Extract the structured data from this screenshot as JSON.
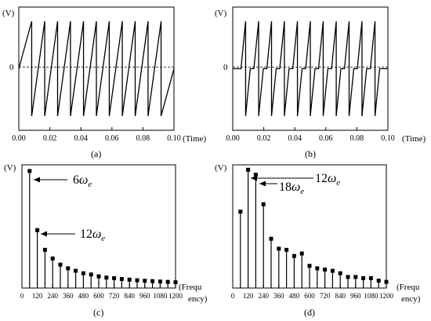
{
  "chart_data": [
    {
      "id": "a",
      "type": "line",
      "caption": "(a)",
      "ylabel": "(V)",
      "xlabel": "(Time)",
      "zero_label": "0",
      "xlim": [
        0,
        0.1
      ],
      "ylim": [
        -1.3,
        1.3
      ],
      "x_ticks": [
        "0.00",
        "0.02",
        "0.04",
        "0.06",
        "0.08",
        "0.10"
      ],
      "x_tick_values": [
        0.0,
        0.02,
        0.04,
        0.06,
        0.08,
        0.1
      ],
      "zero_line": "dashed",
      "series": [
        {
          "x": [
            0.0,
            0.0083,
            0.0083,
            0.0167,
            0.0167,
            0.025,
            0.025,
            0.0333,
            0.0333,
            0.0417,
            0.0417,
            0.05,
            0.05,
            0.0583,
            0.0583,
            0.0667,
            0.0667,
            0.075,
            0.075,
            0.0833,
            0.0833,
            0.0917,
            0.0917,
            0.1
          ],
          "y": [
            0.0,
            1.0,
            -1.0,
            1.0,
            -1.0,
            1.0,
            -1.0,
            1.0,
            -1.0,
            1.0,
            -1.0,
            1.0,
            -1.0,
            1.0,
            -1.0,
            1.0,
            -1.0,
            1.0,
            -1.0,
            1.0,
            -1.0,
            1.0,
            -1.0,
            0.0
          ]
        }
      ]
    },
    {
      "id": "b",
      "type": "line",
      "caption": "(b)",
      "ylabel": "(V)",
      "xlabel": "(Time)",
      "zero_label": "0",
      "xlim": [
        0,
        0.1
      ],
      "ylim": [
        -1.3,
        1.3
      ],
      "x_ticks": [
        "0.00",
        "0.02",
        "0.04",
        "0.06",
        "0.08",
        "0.10"
      ],
      "x_tick_values": [
        0.0,
        0.02,
        0.04,
        0.06,
        0.08,
        0.1
      ],
      "zero_line": "dashed",
      "series": [
        {
          "x": [
            0.0,
            0.0053,
            0.0083,
            0.0083,
            0.0113,
            0.0136,
            0.0167,
            0.0167,
            0.0197,
            0.022,
            0.025,
            0.025,
            0.028,
            0.0303,
            0.0333,
            0.0333,
            0.0363,
            0.0387,
            0.0417,
            0.0417,
            0.0447,
            0.047,
            0.05,
            0.05,
            0.053,
            0.0553,
            0.0583,
            0.0583,
            0.0613,
            0.0637,
            0.0667,
            0.0667,
            0.0697,
            0.072,
            0.075,
            0.075,
            0.078,
            0.0803,
            0.0833,
            0.0833,
            0.0863,
            0.0887,
            0.0917,
            0.0917,
            0.0947,
            0.1
          ],
          "y": [
            0.0,
            0.0,
            1.0,
            -1.0,
            0.0,
            0.0,
            1.0,
            -1.0,
            0.0,
            0.0,
            1.0,
            -1.0,
            0.0,
            0.0,
            1.0,
            -1.0,
            0.0,
            0.0,
            1.0,
            -1.0,
            0.0,
            0.0,
            1.0,
            -1.0,
            0.0,
            0.0,
            1.0,
            -1.0,
            0.0,
            0.0,
            1.0,
            -1.0,
            0.0,
            0.0,
            1.0,
            -1.0,
            0.0,
            0.0,
            1.0,
            -1.0,
            0.0,
            0.0,
            1.0,
            -1.0,
            0.0,
            0.0
          ]
        }
      ]
    },
    {
      "id": "c",
      "type": "bar",
      "caption": "(c)",
      "ylabel": "(V)",
      "xlabel_line1": "(Frequ",
      "xlabel_line2": "ency)",
      "xlim": [
        0,
        1200
      ],
      "ylim": [
        0,
        1.0
      ],
      "x_ticks": [
        "0",
        "120",
        "240",
        "360",
        "480",
        "600",
        "720",
        "840",
        "960",
        "1080",
        "1200"
      ],
      "x_tick_values": [
        0,
        120,
        240,
        360,
        480,
        600,
        720,
        840,
        960,
        1080,
        1200
      ],
      "x": [
        60,
        120,
        180,
        240,
        300,
        360,
        420,
        480,
        540,
        600,
        660,
        720,
        780,
        840,
        900,
        960,
        1020,
        1080,
        1140,
        1200
      ],
      "values": [
        0.95,
        0.47,
        0.31,
        0.24,
        0.19,
        0.16,
        0.14,
        0.12,
        0.11,
        0.095,
        0.085,
        0.08,
        0.073,
        0.068,
        0.063,
        0.059,
        0.056,
        0.053,
        0.05,
        0.047
      ],
      "annotations": [
        {
          "base": "6",
          "symbol": "ω",
          "sub": "e",
          "x": 60
        },
        {
          "base": "12",
          "symbol": "ω",
          "sub": "e",
          "x": 120
        }
      ]
    },
    {
      "id": "d",
      "type": "bar",
      "caption": "(d)",
      "ylabel": "(V)",
      "xlabel_line1": "(Frequ",
      "xlabel_line2": "ency)",
      "xlim": [
        0,
        1200
      ],
      "ylim": [
        0,
        1.0
      ],
      "x_ticks": [
        "0",
        "120",
        "240",
        "360",
        "480",
        "600",
        "720",
        "840",
        "960",
        "1080",
        "1200"
      ],
      "x_tick_values": [
        0,
        120,
        240,
        360,
        480,
        600,
        720,
        840,
        960,
        1080,
        1200
      ],
      "x": [
        60,
        120,
        180,
        240,
        300,
        360,
        420,
        480,
        540,
        600,
        660,
        720,
        780,
        840,
        900,
        960,
        1020,
        1080,
        1140,
        1200
      ],
      "values": [
        0.62,
        0.96,
        0.92,
        0.68,
        0.4,
        0.32,
        0.31,
        0.26,
        0.28,
        0.18,
        0.16,
        0.15,
        0.14,
        0.12,
        0.09,
        0.09,
        0.08,
        0.08,
        0.06,
        0.05
      ],
      "annotations": [
        {
          "base": "12",
          "symbol": "ω",
          "sub": "e",
          "x": 120
        },
        {
          "base": "18",
          "symbol": "ω",
          "sub": "e",
          "x": 180
        }
      ]
    }
  ]
}
